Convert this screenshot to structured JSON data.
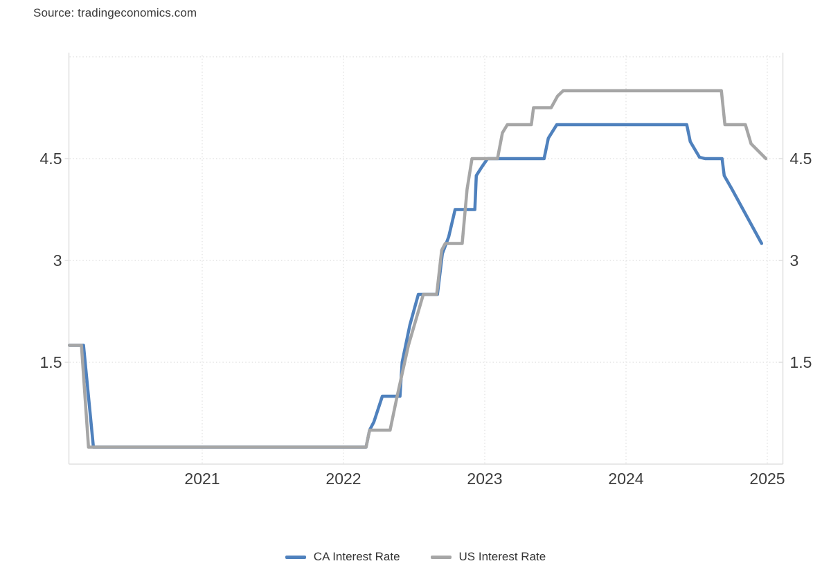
{
  "source": {
    "label": "Source: tradingeconomics.com"
  },
  "legend": [
    {
      "label": "CA Interest Rate",
      "color": "#4f81bd"
    },
    {
      "label": "US Interest Rate",
      "color": "#a6a6a6"
    }
  ],
  "chart_data": {
    "type": "line",
    "title": "",
    "xlabel": "",
    "ylabel": "",
    "unit": "percent",
    "x_axis": {
      "tick_values": [
        2021,
        2022,
        2023,
        2024,
        2025
      ],
      "tick_labels": [
        "2021",
        "2022",
        "2023",
        "2024",
        "2025"
      ],
      "range": [
        2020.0,
        2025.1
      ]
    },
    "y_axis": {
      "tick_values": [
        4.5,
        3,
        1.5
      ],
      "tick_labels": [
        "4.5",
        "3",
        "1.5"
      ],
      "gridline_values": [
        1.5,
        3,
        4.5,
        6
      ],
      "range": [
        0,
        6
      ],
      "labels_on_both_sides": true
    },
    "grid": "dotted",
    "legend_position": "bottom",
    "colors": {
      "gridline": "#e3e3e3",
      "axis": "#e0e0e0",
      "tick_text": "#3c3c3c"
    },
    "series": [
      {
        "name": "CA Interest Rate",
        "color": "#4f81bd",
        "width": 4.5,
        "points": [
          [
            2020.06,
            1.75
          ],
          [
            2020.16,
            1.75
          ],
          [
            2020.23,
            0.25
          ],
          [
            2022.16,
            0.25
          ],
          [
            2022.185,
            0.5
          ],
          [
            2022.215,
            0.62
          ],
          [
            2022.275,
            1.0
          ],
          [
            2022.4,
            1.0
          ],
          [
            2022.415,
            1.5
          ],
          [
            2022.47,
            2.05
          ],
          [
            2022.53,
            2.5
          ],
          [
            2022.665,
            2.5
          ],
          [
            2022.7,
            3.1
          ],
          [
            2022.745,
            3.35
          ],
          [
            2022.79,
            3.75
          ],
          [
            2022.93,
            3.75
          ],
          [
            2022.94,
            4.25
          ],
          [
            2022.98,
            4.38
          ],
          [
            2023.02,
            4.5
          ],
          [
            2023.42,
            4.5
          ],
          [
            2023.45,
            4.8
          ],
          [
            2023.51,
            5.0
          ],
          [
            2024.43,
            5.0
          ],
          [
            2024.455,
            4.75
          ],
          [
            2024.52,
            4.52
          ],
          [
            2024.56,
            4.5
          ],
          [
            2024.68,
            4.5
          ],
          [
            2024.695,
            4.25
          ],
          [
            2024.75,
            4.05
          ],
          [
            2024.96,
            3.25
          ]
        ]
      },
      {
        "name": "US Interest Rate",
        "color": "#a6a6a6",
        "width": 4.5,
        "points": [
          [
            2020.06,
            1.75
          ],
          [
            2020.145,
            1.75
          ],
          [
            2020.195,
            0.25
          ],
          [
            2022.16,
            0.25
          ],
          [
            2022.185,
            0.5
          ],
          [
            2022.22,
            0.5
          ],
          [
            2022.33,
            0.5
          ],
          [
            2022.38,
            1.0
          ],
          [
            2022.46,
            1.75
          ],
          [
            2022.565,
            2.5
          ],
          [
            2022.66,
            2.5
          ],
          [
            2022.695,
            3.15
          ],
          [
            2022.72,
            3.25
          ],
          [
            2022.84,
            3.25
          ],
          [
            2022.875,
            4.05
          ],
          [
            2022.91,
            4.5
          ],
          [
            2023.09,
            4.5
          ],
          [
            2023.125,
            4.88
          ],
          [
            2023.16,
            5.0
          ],
          [
            2023.33,
            5.0
          ],
          [
            2023.345,
            5.25
          ],
          [
            2023.47,
            5.25
          ],
          [
            2023.515,
            5.42
          ],
          [
            2023.555,
            5.5
          ],
          [
            2024.675,
            5.5
          ],
          [
            2024.7,
            5.0
          ],
          [
            2024.845,
            5.0
          ],
          [
            2024.885,
            4.72
          ],
          [
            2024.99,
            4.5
          ]
        ]
      }
    ]
  }
}
